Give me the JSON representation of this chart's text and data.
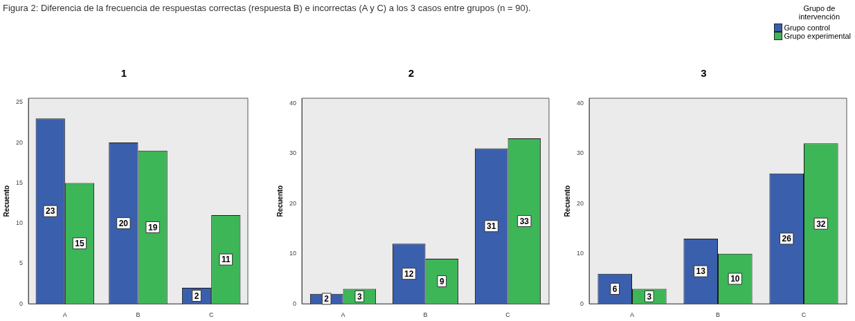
{
  "chart_data": [
    {
      "type": "bar",
      "title": "1",
      "ylabel": "Recuento",
      "annotations": [
        "Figura 2: Diferencia de la frecuencia de respuestas correctas (respuesta B) e incorrectas (A y C) a los 3 casos entre grupos (n = 90)."
      ],
      "categories": [
        "A",
        "B",
        "C"
      ],
      "series": [
        {
          "color": "#3a5fad",
          "values": [
            23,
            20,
            2
          ]
        },
        {
          "color": "#3db657",
          "values": [
            15,
            19,
            11
          ]
        }
      ],
      "ylim": [
        0,
        25.5
      ],
      "yticks": [
        0,
        5,
        10,
        15,
        20,
        25
      ],
      "data_labels": true
    },
    {
      "type": "bar",
      "title": "2",
      "ylabel": "Recuento",
      "categories": [
        "A",
        "B",
        "C"
      ],
      "series": [
        {
          "color": "#3a5fad",
          "values": [
            2,
            12,
            31
          ]
        },
        {
          "color": "#3db657",
          "values": [
            3,
            9,
            33
          ]
        }
      ],
      "ylim": [
        0,
        41
      ],
      "yticks": [
        0,
        10,
        20,
        30,
        40
      ],
      "data_labels": true
    },
    {
      "type": "bar",
      "title": "3",
      "ylabel": "Recuento",
      "legend_title": "Grupo de intervención",
      "legend": "top right",
      "categories": [
        "A",
        "B",
        "C"
      ],
      "series": [
        {
          "name": "Grupo control",
          "color": "#3a5fad",
          "values": [
            6,
            13,
            26
          ]
        },
        {
          "name": "Grupo experimental",
          "color": "#3db657",
          "values": [
            3,
            10,
            32
          ]
        }
      ],
      "ylim": [
        0,
        41
      ],
      "yticks": [
        0,
        10,
        20,
        30,
        40
      ],
      "data_labels": true
    }
  ]
}
